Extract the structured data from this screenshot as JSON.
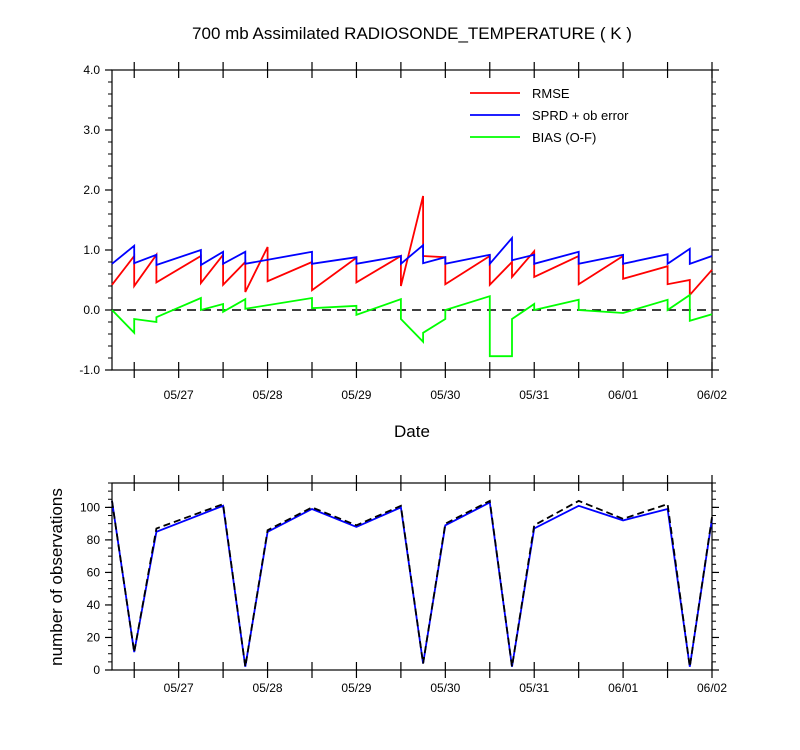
{
  "chart_data": [
    {
      "type": "line",
      "title": "700 mb Assimilated RADIOSONDE_TEMPERATURE ( K )",
      "xlabel": "Date",
      "ylabel": "",
      "ylim": [
        -1.0,
        4.0
      ],
      "yticks": [
        "-1.0",
        "0.0",
        "1.0",
        "2.0",
        "3.0",
        "4.0"
      ],
      "xticks": [
        "05/27",
        "05/28",
        "05/29",
        "05/30",
        "05/31",
        "06/01",
        "06/02"
      ],
      "zero_line": "dashed",
      "legend": "top-right",
      "series": [
        {
          "name": "RMSE",
          "color": "#ff0000",
          "points": [
            [
              -0.75,
              0.42
            ],
            [
              -0.5,
              0.9
            ],
            [
              -0.5,
              0.4
            ],
            [
              -0.25,
              0.92
            ],
            [
              -0.25,
              0.46
            ],
            [
              0.25,
              0.9
            ],
            [
              0.25,
              0.45
            ],
            [
              0.5,
              0.92
            ],
            [
              0.5,
              0.42
            ],
            [
              0.75,
              0.8
            ],
            [
              0.75,
              0.3
            ],
            [
              1.0,
              1.05
            ],
            [
              1.0,
              0.48
            ],
            [
              1.5,
              0.8
            ],
            [
              1.5,
              0.33
            ],
            [
              2.0,
              0.87
            ],
            [
              2.0,
              0.46
            ],
            [
              2.5,
              0.9
            ],
            [
              2.5,
              0.4
            ],
            [
              2.75,
              1.9
            ],
            [
              2.75,
              0.9
            ],
            [
              3.0,
              0.88
            ],
            [
              3.0,
              0.43
            ],
            [
              3.5,
              0.9
            ],
            [
              3.5,
              0.42
            ],
            [
              3.75,
              0.8
            ],
            [
              3.75,
              0.55
            ],
            [
              4.0,
              0.98
            ],
            [
              4.0,
              0.55
            ],
            [
              4.5,
              0.9
            ],
            [
              4.5,
              0.43
            ],
            [
              5.0,
              0.9
            ],
            [
              5.0,
              0.52
            ],
            [
              5.5,
              0.73
            ],
            [
              5.5,
              0.43
            ],
            [
              5.75,
              0.5
            ],
            [
              5.75,
              0.25
            ],
            [
              6.0,
              0.67
            ]
          ]
        },
        {
          "name": "SPRD + ob error",
          "color": "#0000ff",
          "points": [
            [
              -0.75,
              0.77
            ],
            [
              -0.5,
              1.07
            ],
            [
              -0.5,
              0.78
            ],
            [
              -0.25,
              0.92
            ],
            [
              -0.25,
              0.75
            ],
            [
              0.25,
              1.0
            ],
            [
              0.25,
              0.75
            ],
            [
              0.5,
              0.97
            ],
            [
              0.5,
              0.77
            ],
            [
              0.75,
              0.97
            ],
            [
              0.75,
              0.77
            ],
            [
              1.5,
              0.97
            ],
            [
              1.5,
              0.77
            ],
            [
              2.0,
              0.88
            ],
            [
              2.0,
              0.77
            ],
            [
              2.5,
              0.9
            ],
            [
              2.5,
              0.77
            ],
            [
              2.75,
              1.08
            ],
            [
              2.75,
              0.78
            ],
            [
              3.0,
              0.88
            ],
            [
              3.0,
              0.77
            ],
            [
              3.5,
              0.92
            ],
            [
              3.5,
              0.77
            ],
            [
              3.75,
              1.2
            ],
            [
              3.75,
              0.83
            ],
            [
              4.0,
              0.92
            ],
            [
              4.0,
              0.77
            ],
            [
              4.5,
              0.97
            ],
            [
              4.5,
              0.77
            ],
            [
              5.0,
              0.92
            ],
            [
              5.0,
              0.77
            ],
            [
              5.5,
              0.93
            ],
            [
              5.5,
              0.77
            ],
            [
              5.75,
              1.02
            ],
            [
              5.75,
              0.77
            ],
            [
              6.0,
              0.9
            ]
          ]
        },
        {
          "name": "BIAS (O-F)",
          "color": "#00ff00",
          "points": [
            [
              -0.75,
              0.0
            ],
            [
              -0.5,
              -0.38
            ],
            [
              -0.5,
              -0.15
            ],
            [
              -0.25,
              -0.2
            ],
            [
              -0.25,
              -0.12
            ],
            [
              0.25,
              0.2
            ],
            [
              0.25,
              0.0
            ],
            [
              0.5,
              0.1
            ],
            [
              0.5,
              -0.03
            ],
            [
              0.75,
              0.18
            ],
            [
              0.75,
              0.02
            ],
            [
              1.5,
              0.2
            ],
            [
              1.5,
              0.03
            ],
            [
              2.0,
              0.07
            ],
            [
              2.0,
              -0.08
            ],
            [
              2.5,
              0.18
            ],
            [
              2.5,
              -0.15
            ],
            [
              2.75,
              -0.53
            ],
            [
              2.75,
              -0.38
            ],
            [
              3.0,
              -0.15
            ],
            [
              3.0,
              0.0
            ],
            [
              3.5,
              0.23
            ],
            [
              3.5,
              -0.77
            ],
            [
              3.75,
              -0.77
            ],
            [
              3.75,
              -0.15
            ],
            [
              4.0,
              0.1
            ],
            [
              4.0,
              0.0
            ],
            [
              4.5,
              0.17
            ],
            [
              4.5,
              0.0
            ],
            [
              5.0,
              -0.05
            ],
            [
              5.5,
              0.17
            ],
            [
              5.5,
              0.0
            ],
            [
              5.75,
              0.25
            ],
            [
              5.75,
              -0.18
            ],
            [
              6.0,
              -0.07
            ]
          ]
        }
      ]
    },
    {
      "type": "line",
      "title": "",
      "xlabel": "",
      "ylabel": "number of observations",
      "ylim": [
        0,
        115
      ],
      "yticks": [
        "0",
        "20",
        "40",
        "60",
        "80",
        "100"
      ],
      "xticks": [
        "05/27",
        "05/28",
        "05/29",
        "05/30",
        "05/31",
        "06/01",
        "06/02"
      ],
      "series": [
        {
          "color": "#0000ff",
          "dash": "solid",
          "points": [
            [
              -0.75,
              104
            ],
            [
              -0.5,
              11
            ],
            [
              -0.25,
              85
            ],
            [
              0.5,
              101
            ],
            [
              0.75,
              2
            ],
            [
              1.0,
              85
            ],
            [
              1.5,
              99
            ],
            [
              2.0,
              88
            ],
            [
              2.5,
              100
            ],
            [
              2.75,
              4
            ],
            [
              3.0,
              89
            ],
            [
              3.5,
              103
            ],
            [
              3.75,
              2
            ],
            [
              4.0,
              87
            ],
            [
              4.5,
              101
            ],
            [
              5.0,
              92
            ],
            [
              5.5,
              99
            ],
            [
              5.75,
              2
            ],
            [
              6.0,
              93
            ]
          ]
        },
        {
          "color": "#000000",
          "dash": "dashed",
          "points": [
            [
              -0.75,
              104
            ],
            [
              -0.5,
              11
            ],
            [
              -0.25,
              87
            ],
            [
              0.5,
              102
            ],
            [
              0.75,
              2
            ],
            [
              1.0,
              86
            ],
            [
              1.5,
              100
            ],
            [
              2.0,
              89
            ],
            [
              2.5,
              101
            ],
            [
              2.75,
              4
            ],
            [
              3.0,
              90
            ],
            [
              3.5,
              104
            ],
            [
              3.75,
              2
            ],
            [
              4.0,
              89
            ],
            [
              4.5,
              104
            ],
            [
              5.0,
              93
            ],
            [
              5.5,
              102
            ],
            [
              5.75,
              2
            ],
            [
              6.0,
              94
            ]
          ]
        }
      ]
    }
  ]
}
